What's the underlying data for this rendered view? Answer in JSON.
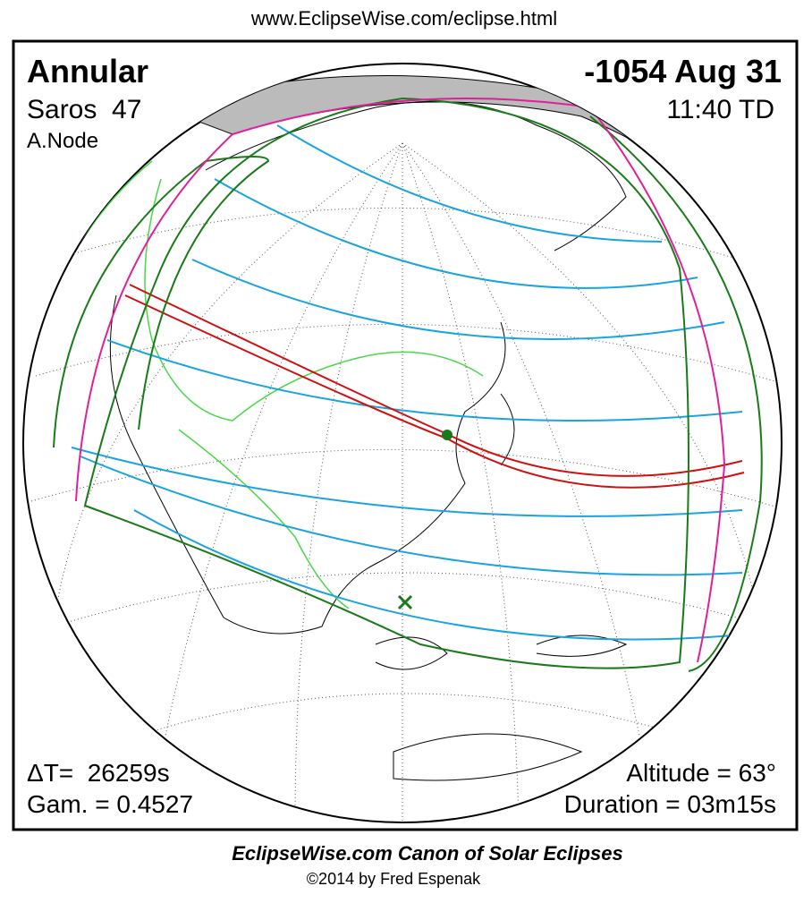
{
  "header": {
    "url": "www.EclipseWise.com/eclipse.html"
  },
  "eclipse": {
    "type": "Annular",
    "saros": "Saros  47",
    "node": "A.Node",
    "date": "-1054 Aug 31",
    "time": "11:40 TD",
    "delta_t": "ΔT=  26259s",
    "gamma": "Gam. = 0.4527",
    "altitude": "Altitude = 63°",
    "duration": "Duration = 03m15s"
  },
  "footer": {
    "title": "EclipseWise.com Canon of Solar Eclipses",
    "copyright": "©2014 by Fred Espenak"
  }
}
